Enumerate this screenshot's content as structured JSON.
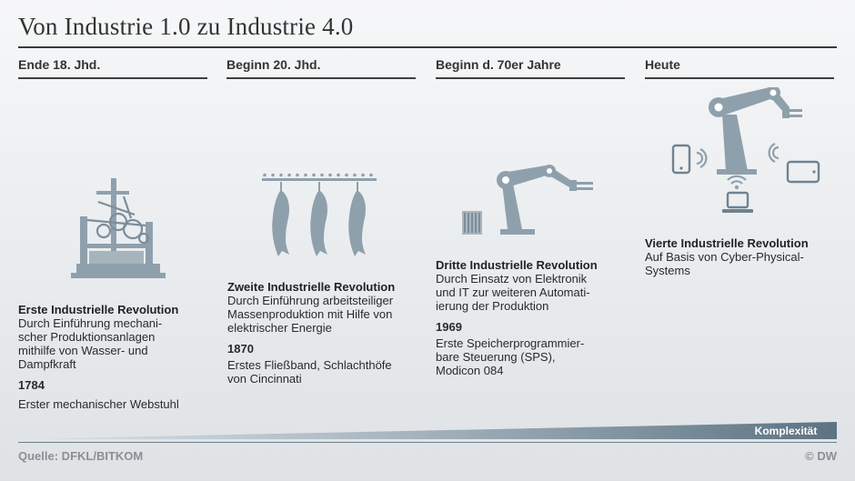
{
  "title": "Von Industrie 1.0 zu Industrie 4.0",
  "columns": [
    {
      "era": "Ende 18. Jhd.",
      "heading": "Erste Industrielle Revolution",
      "description": [
        "Durch Einführung mechani-",
        "scher Produktionsanlagen",
        "mithilfe von Wasser- und",
        "Dampfkraft"
      ],
      "year": "1784",
      "milestone": [
        "Erster mechanischer Webstuhl"
      ],
      "icon": "mechanical-loom-icon"
    },
    {
      "era": "Beginn 20. Jhd.",
      "heading": "Zweite Industrielle Revolution",
      "description": [
        "Durch Einführung arbeitsteiliger",
        "Massenproduktion mit Hilfe von",
        "elektrischer Energie"
      ],
      "year": "1870",
      "milestone": [
        "Erstes Fließband, Schlachthöfe",
        "von Cincinnati"
      ],
      "icon": "assembly-line-icon"
    },
    {
      "era": "Beginn d. 70er Jahre",
      "heading": "Dritte Industrielle Revolution",
      "description": [
        "Durch Einsatz von Elektronik",
        "und IT zur weiteren Automati-",
        "ierung der Produktion"
      ],
      "year": "1969",
      "milestone": [
        "Erste Speicherprogrammier-",
        "bare Steuerung (SPS),",
        "Modicon 084"
      ],
      "icon": "industrial-robot-icon"
    },
    {
      "era": "Heute",
      "heading": "Vierte Industrielle Revolution",
      "description": [
        "Auf Basis von Cyber-Physical-",
        "Systems"
      ],
      "icon": "connected-robot-icon"
    }
  ],
  "complexity_label": "Komplexität",
  "source": "Quelle: DFKL/BITKOM",
  "copyright": "© DW",
  "colors": {
    "icon": "#8fa0ad",
    "icon_dark": "#6f8391",
    "wedge_dark": "#5d7382",
    "wedge_light": "#d8dde1",
    "rule": "#3f3f3f"
  }
}
